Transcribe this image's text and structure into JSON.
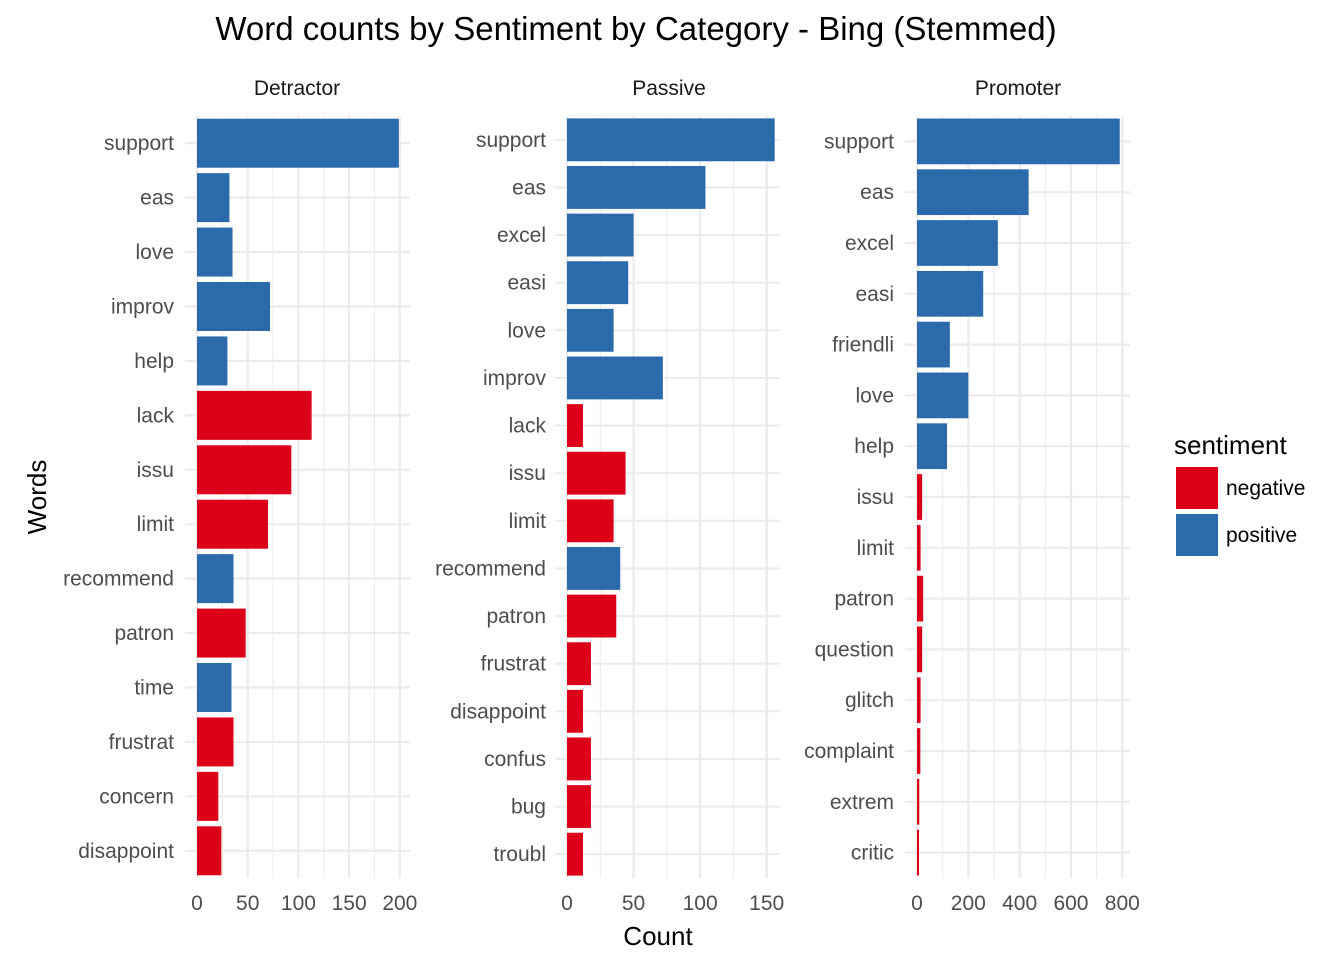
{
  "chart_data": {
    "type": "bar",
    "orientation": "horizontal",
    "title": "Word counts by Sentiment by Category - Bing (Stemmed)",
    "xlabel": "Count",
    "ylabel": "Words",
    "grid": true,
    "legend": {
      "title": "sentiment",
      "placement": "right",
      "entries": [
        {
          "key": "negative",
          "label": "negative",
          "color": "#dc0018"
        },
        {
          "key": "positive",
          "label": "positive",
          "color": "#2b6aab"
        }
      ]
    },
    "panels": [
      {
        "name": "Detractor",
        "xlim": [
          0,
          210
        ],
        "ticks": [
          0,
          50,
          100,
          150,
          200
        ],
        "categories": [
          "support",
          "eas",
          "love",
          "improv",
          "help",
          "lack",
          "issu",
          "limit",
          "recommend",
          "patron",
          "time",
          "frustrat",
          "concern",
          "disappoint"
        ],
        "values": [
          199,
          32,
          35,
          72,
          30,
          113,
          93,
          70,
          36,
          48,
          34,
          36,
          21,
          24
        ],
        "sentiment": [
          "positive",
          "positive",
          "positive",
          "positive",
          "positive",
          "negative",
          "negative",
          "negative",
          "positive",
          "negative",
          "positive",
          "negative",
          "negative",
          "negative"
        ]
      },
      {
        "name": "Passive",
        "xlim": [
          0,
          160
        ],
        "ticks": [
          0,
          50,
          100,
          150
        ],
        "categories": [
          "support",
          "eas",
          "excel",
          "easi",
          "love",
          "improv",
          "lack",
          "issu",
          "limit",
          "recommend",
          "patron",
          "frustrat",
          "disappoint",
          "confus",
          "bug",
          "troubl"
        ],
        "values": [
          156,
          104,
          50,
          46,
          35,
          72,
          12,
          44,
          35,
          40,
          37,
          18,
          12,
          18,
          18,
          12
        ],
        "sentiment": [
          "positive",
          "positive",
          "positive",
          "positive",
          "positive",
          "positive",
          "negative",
          "negative",
          "negative",
          "positive",
          "negative",
          "negative",
          "negative",
          "negative",
          "negative",
          "negative"
        ]
      },
      {
        "name": "Promoter",
        "xlim": [
          0,
          830
        ],
        "ticks": [
          0,
          200,
          400,
          600,
          800
        ],
        "categories": [
          "support",
          "eas",
          "excel",
          "easi",
          "friendli",
          "love",
          "help",
          "issu",
          "limit",
          "patron",
          "question",
          "glitch",
          "complaint",
          "extrem",
          "critic"
        ],
        "values": [
          790,
          435,
          315,
          258,
          128,
          200,
          117,
          20,
          14,
          24,
          20,
          14,
          13,
          9,
          8
        ],
        "sentiment": [
          "positive",
          "positive",
          "positive",
          "positive",
          "positive",
          "positive",
          "positive",
          "negative",
          "negative",
          "negative",
          "negative",
          "negative",
          "negative",
          "negative",
          "negative"
        ]
      }
    ]
  }
}
